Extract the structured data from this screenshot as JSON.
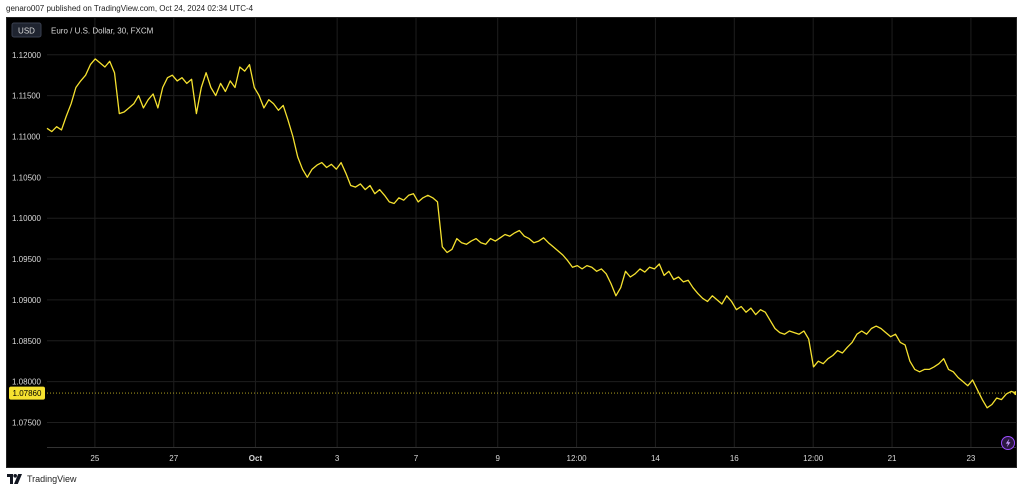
{
  "header": {
    "published_line": "genaro007 published on TradingView.com, Oct 24, 2024 02:34 UTC-4"
  },
  "footer": {
    "brand": "TradingView",
    "logo_icon": "tradingview-logo-icon"
  },
  "currency_badge": "USD",
  "symbol_legend": "Euro / U.S. Dollar, 30, FXCM",
  "price_label": "1.07860",
  "lightning_icon": "lightning-icon",
  "colors": {
    "background": "#000000",
    "line": "#f5e12f",
    "price_badge": "#f5e12f",
    "grid": "#1e1e1e",
    "text": "#d9d9d9"
  },
  "chart_data": {
    "type": "line",
    "series": [
      {
        "values": [
          1.111,
          1.1106,
          1.1112,
          1.1108,
          1.1125,
          1.114,
          1.116,
          1.1168,
          1.1175,
          1.1188,
          1.1195,
          1.119,
          1.1185,
          1.1192,
          1.1178,
          1.1128,
          1.113,
          1.1135,
          1.114,
          1.115,
          1.1135,
          1.1145,
          1.1152,
          1.1135,
          1.116,
          1.1172,
          1.1175,
          1.1168,
          1.1172,
          1.1165,
          1.117,
          1.1128,
          1.116,
          1.1178,
          1.116,
          1.115,
          1.1165,
          1.1155,
          1.1168,
          1.116,
          1.1185,
          1.118,
          1.1188,
          1.116,
          1.115,
          1.1135,
          1.1145,
          1.114,
          1.1132,
          1.1138,
          1.112,
          1.11,
          1.1075,
          1.106,
          1.105,
          1.106,
          1.1065,
          1.1068,
          1.1062,
          1.1066,
          1.106,
          1.1068,
          1.1055,
          1.104,
          1.1038,
          1.1042,
          1.1035,
          1.104,
          1.103,
          1.1035,
          1.1028,
          1.102,
          1.1018,
          1.1025,
          1.1022,
          1.1028,
          1.103,
          1.102,
          1.1025,
          1.1028,
          1.1025,
          1.102,
          1.0965,
          1.0958,
          1.0962,
          1.0975,
          1.097,
          1.0968,
          1.0972,
          1.0975,
          1.097,
          1.0968,
          1.0975,
          1.0972,
          1.0976,
          1.098,
          1.0978,
          1.0982,
          1.0985,
          1.0978,
          1.0975,
          1.097,
          1.0972,
          1.0976,
          1.097,
          1.0965,
          1.096,
          1.0955,
          1.0948,
          1.094,
          1.0942,
          1.0938,
          1.0942,
          1.094,
          1.0935,
          1.0938,
          1.0932,
          1.092,
          1.0905,
          1.0915,
          1.0935,
          1.0928,
          1.0932,
          1.0938,
          1.0934,
          1.094,
          1.0938,
          1.0944,
          1.093,
          1.0935,
          1.0925,
          1.0928,
          1.0922,
          1.0924,
          1.0915,
          1.0908,
          1.0902,
          1.0898,
          1.0905,
          1.09,
          1.0895,
          1.0905,
          1.0898,
          1.0888,
          1.0892,
          1.0885,
          1.089,
          1.0882,
          1.0888,
          1.0885,
          1.0875,
          1.0865,
          1.086,
          1.0858,
          1.0862,
          1.086,
          1.0858,
          1.0862,
          1.0852,
          1.0818,
          1.0825,
          1.0822,
          1.0828,
          1.0832,
          1.0838,
          1.0835,
          1.0842,
          1.0848,
          1.0858,
          1.0862,
          1.0858,
          1.0865,
          1.0868,
          1.0865,
          1.086,
          1.0855,
          1.0858,
          1.0848,
          1.0845,
          1.0825,
          1.0815,
          1.0812,
          1.0815,
          1.0815,
          1.0818,
          1.0822,
          1.0828,
          1.0815,
          1.0812,
          1.0805,
          1.08,
          1.0795,
          1.0802,
          1.079,
          1.0778,
          1.0768,
          1.0772,
          1.078,
          1.0778,
          1.0785,
          1.0788,
          1.0786
        ]
      }
    ],
    "x_labels": [
      "25",
      "27",
      "Oct",
      "3",
      "7",
      "9",
      "12:00",
      "14",
      "16",
      "12:00",
      "21",
      "23"
    ],
    "x_label_positions": [
      8.5,
      22.5,
      37,
      51.5,
      65.5,
      80,
      94,
      108,
      122,
      136,
      150,
      164
    ],
    "y_ticks": [
      "1.12000",
      "1.11500",
      "1.11000",
      "1.10500",
      "1.10000",
      "1.09500",
      "1.09000",
      "1.08500",
      "1.08000",
      "1.07500"
    ],
    "ylim": [
      1.072,
      1.1245
    ],
    "xlim": [
      0,
      172
    ],
    "last_price": 1.0786,
    "grid": true
  }
}
